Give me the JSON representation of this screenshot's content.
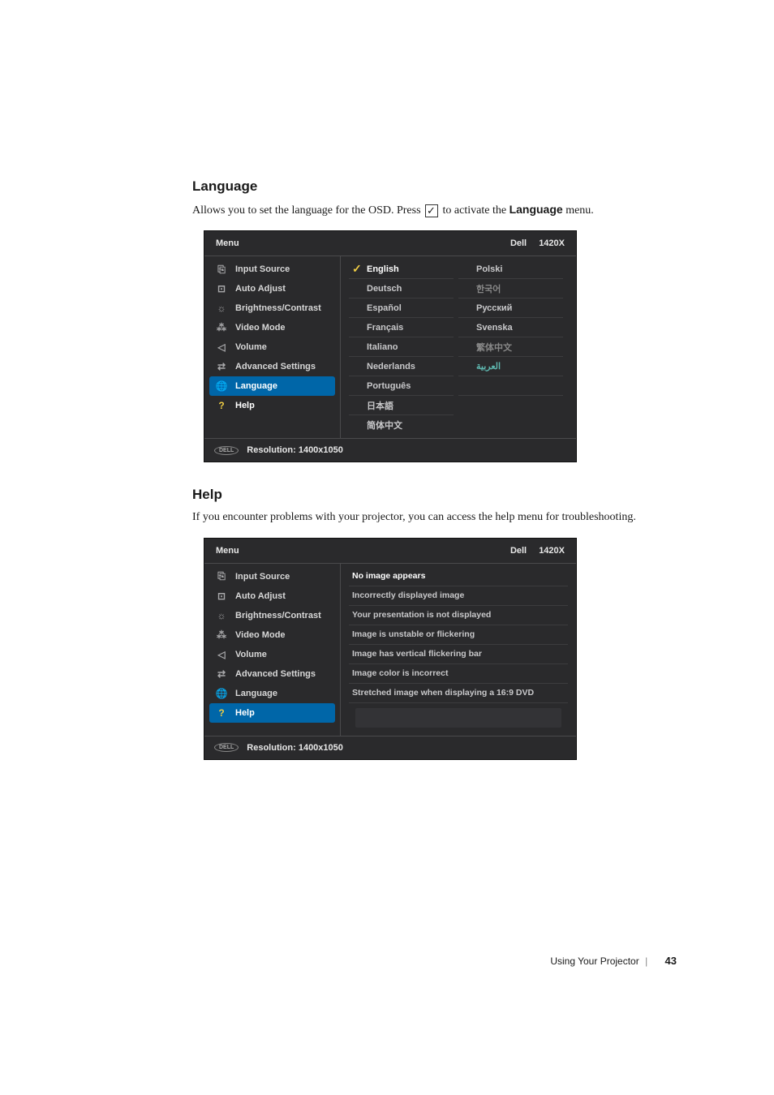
{
  "section1": {
    "heading": "Language",
    "body_pre": "Allows you to set the language for the OSD. Press ",
    "body_post": " to activate the ",
    "body_bold": "Language",
    "body_end": " menu."
  },
  "section2": {
    "heading": "Help",
    "body": "If you encounter problems with your projector, you can access the help menu for troubleshooting."
  },
  "osd": {
    "header_menu": "Menu",
    "header_brand": "Dell",
    "header_model": "1420X",
    "footer_res": "Resolution: 1400x1050",
    "menu": [
      {
        "label": "Input Source",
        "icon": "input-source"
      },
      {
        "label": "Auto Adjust",
        "icon": "auto-adjust"
      },
      {
        "label": "Brightness/Contrast",
        "icon": "brightness"
      },
      {
        "label": "Video Mode",
        "icon": "video-mode"
      },
      {
        "label": "Volume",
        "icon": "volume"
      },
      {
        "label": "Advanced Settings",
        "icon": "advanced"
      },
      {
        "label": "Language",
        "icon": "language"
      },
      {
        "label": "Help",
        "icon": "help"
      }
    ]
  },
  "languages": {
    "col1": [
      {
        "label": "English",
        "checked": true,
        "selected": true
      },
      {
        "label": "Deutsch"
      },
      {
        "label": "Español"
      },
      {
        "label": "Français"
      },
      {
        "label": "Italiano"
      },
      {
        "label": "Nederlands"
      },
      {
        "label": "Português"
      },
      {
        "label": "日本語"
      },
      {
        "label": "简体中文"
      }
    ],
    "col2": [
      {
        "label": "Polski"
      },
      {
        "label": "한국어",
        "dim": true
      },
      {
        "label": "Русский"
      },
      {
        "label": "Svenska"
      },
      {
        "label": "繁体中文",
        "dim": true
      },
      {
        "label": "العربية",
        "teal": true
      }
    ]
  },
  "help_items": [
    "No image appears",
    "Incorrectly displayed image",
    "Your presentation is not displayed",
    "Image is unstable or flickering",
    "Image has vertical flickering bar",
    "Image color is incorrect",
    "Stretched image when displaying a 16:9 DVD"
  ],
  "footer": {
    "text": "Using Your Projector",
    "page": "43"
  },
  "colors": {
    "osd_bg": "#2a2a2c",
    "osd_border": "#4a4a4c",
    "highlight": "#0066a8",
    "accent": "#eecc44"
  }
}
